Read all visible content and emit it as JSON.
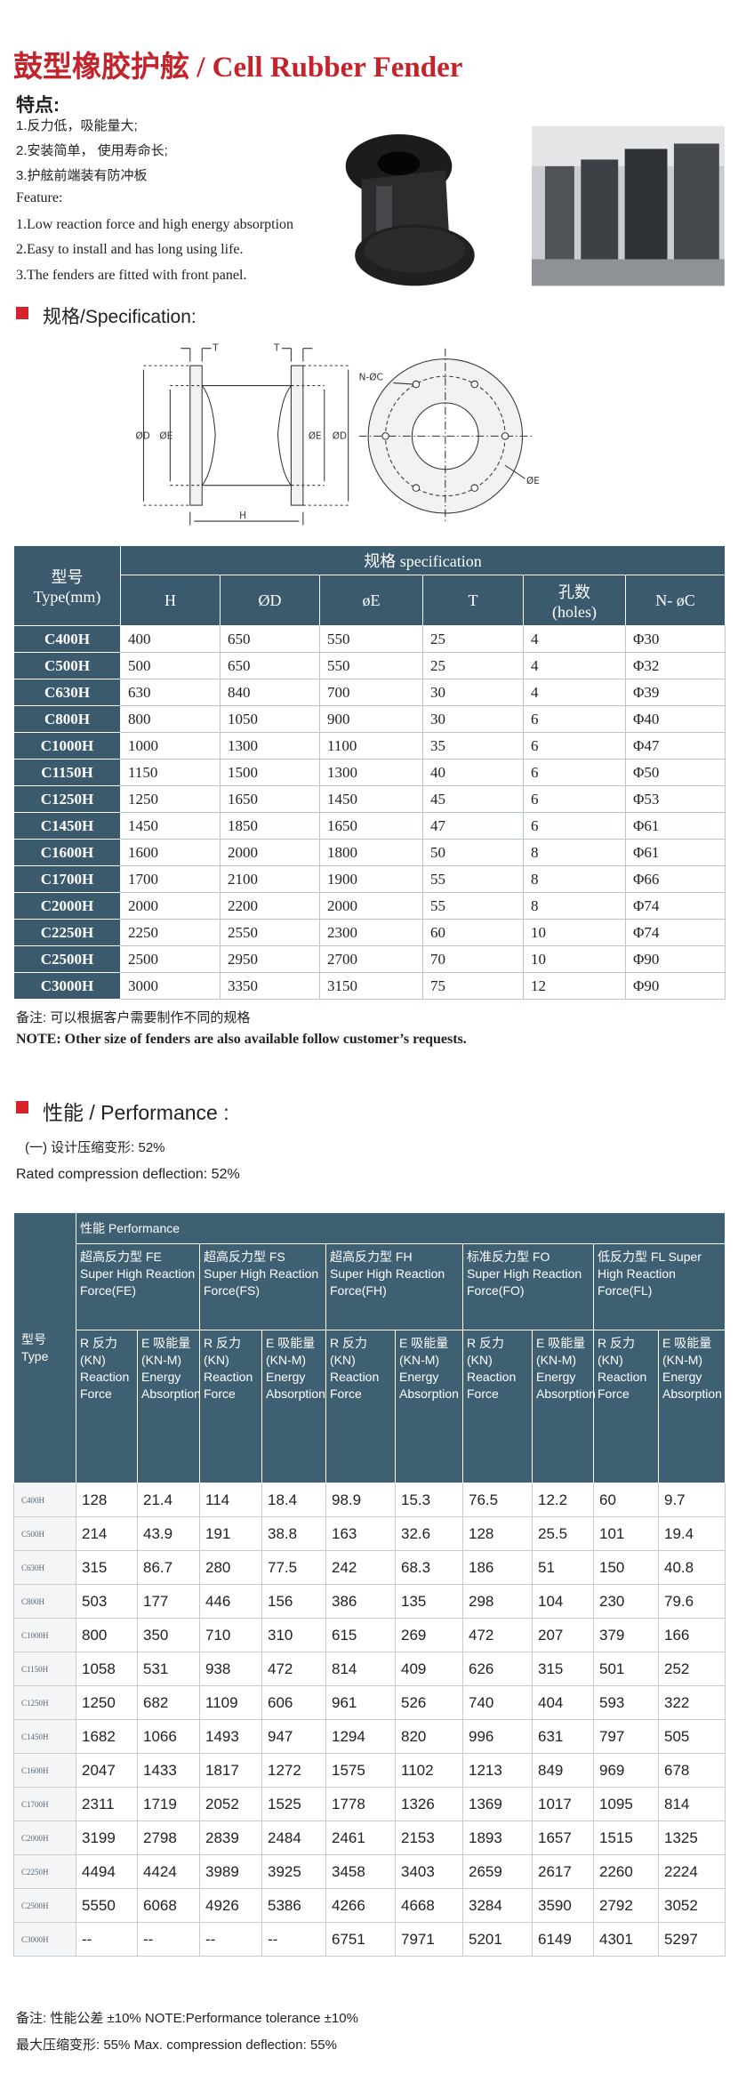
{
  "header": {
    "title": "鼓型橡胶护舷 / Cell Rubber Fender"
  },
  "features": {
    "heading": "特点:",
    "cn": [
      "1.反力低，吸能量大;",
      "2.安装简单， 使用寿命长;",
      "3.护舷前端装有防冲板"
    ],
    "en_heading": "Feature:",
    "en": [
      "1.Low reaction force and high energy absorption",
      "2.Easy to install and has long using life.",
      "3.The fenders are fitted with front panel."
    ]
  },
  "specification": {
    "heading": "规格/Specification:",
    "diagram_labels": [
      "T",
      "T",
      "ØD",
      "ØE",
      "ØE",
      "ØD",
      "H",
      "N-ØC",
      "ØE"
    ],
    "table": {
      "type_header": [
        "型号",
        "Type(mm)"
      ],
      "group_header": "规格 specification",
      "columns": [
        [
          "H"
        ],
        [
          "ØD"
        ],
        [
          "øE"
        ],
        [
          "T"
        ],
        [
          "孔数",
          "(holes)"
        ],
        [
          "N- øC"
        ]
      ],
      "rows": [
        [
          "C400H",
          "400",
          "650",
          "550",
          "25",
          "4",
          "Φ30"
        ],
        [
          "C500H",
          "500",
          "650",
          "550",
          "25",
          "4",
          "Φ32"
        ],
        [
          "C630H",
          "630",
          "840",
          "700",
          "30",
          "4",
          "Φ39"
        ],
        [
          "C800H",
          "800",
          "1050",
          "900",
          "30",
          "6",
          "Φ40"
        ],
        [
          "C1000H",
          "1000",
          "1300",
          "1100",
          "35",
          "6",
          "Φ47"
        ],
        [
          "C1150H",
          "1150",
          "1500",
          "1300",
          "40",
          "6",
          "Φ50"
        ],
        [
          "C1250H",
          "1250",
          "1650",
          "1450",
          "45",
          "6",
          "Φ53"
        ],
        [
          "C1450H",
          "1450",
          "1850",
          "1650",
          "47",
          "6",
          "Φ61"
        ],
        [
          "C1600H",
          "1600",
          "2000",
          "1800",
          "50",
          "8",
          "Φ61"
        ],
        [
          "C1700H",
          "1700",
          "2100",
          "1900",
          "55",
          "8",
          "Φ66"
        ],
        [
          "C2000H",
          "2000",
          "2200",
          "2000",
          "55",
          "8",
          "Φ74"
        ],
        [
          "C2250H",
          "2250",
          "2550",
          "2300",
          "60",
          "10",
          "Φ74"
        ],
        [
          "C2500H",
          "2500",
          "2950",
          "2700",
          "70",
          "10",
          "Φ90"
        ],
        [
          "C3000H",
          "3000",
          "3350",
          "3150",
          "75",
          "12",
          "Φ90"
        ]
      ]
    },
    "notes": [
      "备注:  可以根据客户需要制作不同的规格",
      "NOTE: Other size of fenders are also available follow customer’s requests."
    ]
  },
  "performance": {
    "heading": "性能 / Performance :",
    "deflection": [
      "(一) 设计压缩变形:  52%",
      "Rated compression deflection:  52%"
    ],
    "table": {
      "type_header": [
        "型号",
        "Type"
      ],
      "group_header": "性能 Performance",
      "groups": [
        [
          "超高反力型 FE",
          "Super High Reaction Force(FE)"
        ],
        [
          "超高反力型 FS",
          "Super High Reaction Force(FS)"
        ],
        [
          "超高反力型 FH",
          "Super High Reaction Force(FH)"
        ],
        [
          "标准反力型 FO",
          "Super High Reaction Force(FO)"
        ],
        [
          "低反力型 FL Super",
          "High Reaction Force(FL)"
        ]
      ],
      "sub_headers": [
        [
          "R 反力",
          "(KN)",
          "Reaction Force"
        ],
        [
          "E 吸能量",
          "(KN-M)",
          "Energy Absorption"
        ]
      ],
      "rows": [
        [
          "C400H",
          "128",
          "21.4",
          "114",
          "18.4",
          "98.9",
          "15.3",
          "76.5",
          "12.2",
          "60",
          "9.7"
        ],
        [
          "C500H",
          "214",
          "43.9",
          "191",
          "38.8",
          "163",
          "32.6",
          "128",
          "25.5",
          "101",
          "19.4"
        ],
        [
          "C630H",
          "315",
          "86.7",
          "280",
          "77.5",
          "242",
          "68.3",
          "186",
          "51",
          "150",
          "40.8"
        ],
        [
          "C800H",
          "503",
          "177",
          "446",
          "156",
          "386",
          "135",
          "298",
          "104",
          "230",
          "79.6"
        ],
        [
          "C1000H",
          "800",
          "350",
          "710",
          "310",
          "615",
          "269",
          "472",
          "207",
          "379",
          "166"
        ],
        [
          "C1150H",
          "1058",
          "531",
          "938",
          "472",
          "814",
          "409",
          "626",
          "315",
          "501",
          "252"
        ],
        [
          "C1250H",
          "1250",
          "682",
          "1109",
          "606",
          "961",
          "526",
          "740",
          "404",
          "593",
          "322"
        ],
        [
          "C1450H",
          "1682",
          "1066",
          "1493",
          "947",
          "1294",
          "820",
          "996",
          "631",
          "797",
          "505"
        ],
        [
          "C1600H",
          "2047",
          "1433",
          "1817",
          "1272",
          "1575",
          "1102",
          "1213",
          "849",
          "969",
          "678"
        ],
        [
          "C1700H",
          "2311",
          "1719",
          "2052",
          "1525",
          "1778",
          "1326",
          "1369",
          "1017",
          "1095",
          "814"
        ],
        [
          "C2000H",
          "3199",
          "2798",
          "2839",
          "2484",
          "2461",
          "2153",
          "1893",
          "1657",
          "1515",
          "1325"
        ],
        [
          "C2250H",
          "4494",
          "4424",
          "3989",
          "3925",
          "3458",
          "3403",
          "2659",
          "2617",
          "2260",
          "2224"
        ],
        [
          "C2500H",
          "5550",
          "6068",
          "4926",
          "5386",
          "4266",
          "4668",
          "3284",
          "3590",
          "2792",
          "3052"
        ],
        [
          "C3000H",
          "--",
          "--",
          "--",
          "--",
          "6751",
          "7971",
          "5201",
          "6149",
          "4301",
          "5297"
        ]
      ]
    },
    "notes": [
      "备注:  性能公差 ±10%  NOTE:Performance tolerance ±10%",
      "最大压缩变形:  55%  Max. compression deflection:  55%"
    ]
  }
}
